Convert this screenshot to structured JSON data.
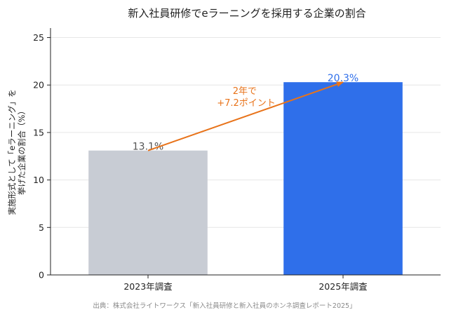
{
  "chart_data": {
    "type": "bar",
    "title": "新入社員研修でeラーニングを採用する企業の割合",
    "categories": [
      "2023年調査",
      "2025年調査"
    ],
    "values": [
      13.1,
      20.3
    ],
    "value_labels": [
      "13.1%",
      "20.3%"
    ],
    "ylabel": "実施形式として「eラーニング」を挙げた企業の割合（%）",
    "ylim": [
      0,
      26
    ],
    "yticks": [
      0,
      5,
      10,
      15,
      20,
      25
    ],
    "grid": true,
    "bar_colors": [
      "#c8ccd4",
      "#2f6fea"
    ],
    "value_label_colors": [
      "#555555",
      "#2f6fea"
    ],
    "annotation": {
      "text_line1": "2年で",
      "text_line2": "+7.2ポイント",
      "color": "#e8731a"
    },
    "source": "出典：株式会社ライトワークス「新入社員研修と新入社員のホンネ調査レポート2025」"
  }
}
